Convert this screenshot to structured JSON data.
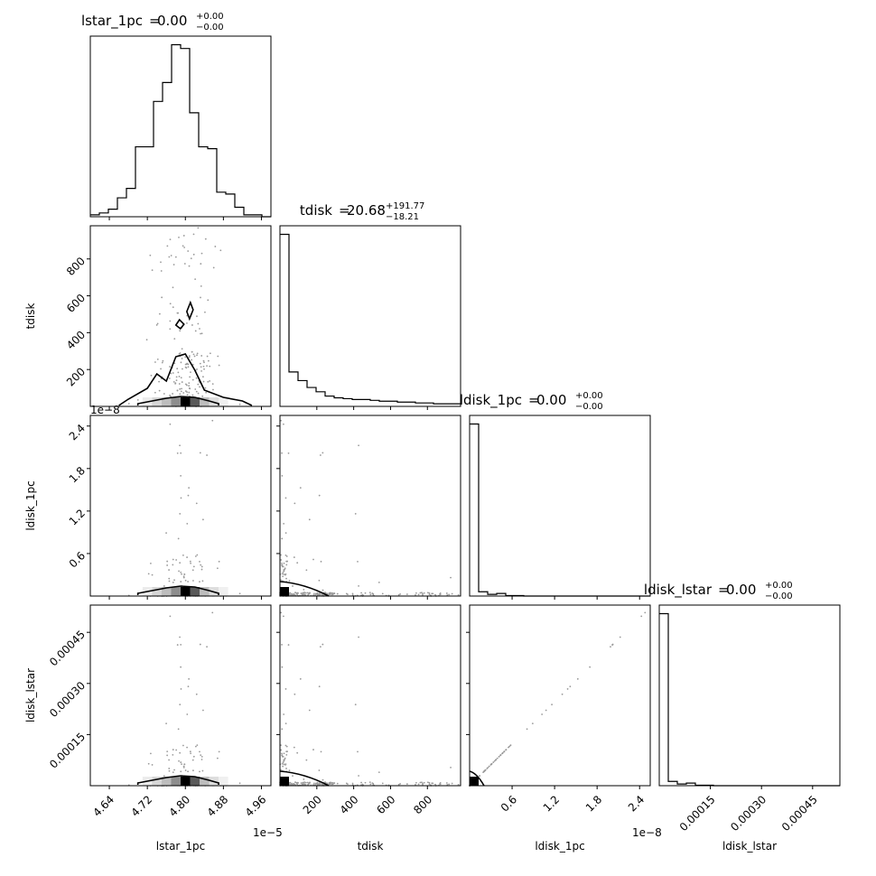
{
  "chart_data": {
    "type": "corner",
    "parameters": [
      "lstar_1pc",
      "tdisk",
      "ldisk_1pc",
      "ldisk_lstar"
    ],
    "titles": [
      {
        "param": "lstar_1pc",
        "median": "0.00",
        "plus": "+0.00",
        "minus": "−0.00"
      },
      {
        "param": "tdisk",
        "median": "20.68",
        "plus": "+191.77",
        "minus": "−18.21"
      },
      {
        "param": "ldisk_1pc",
        "median": "0.00",
        "plus": "+0.00",
        "minus": "−0.00"
      },
      {
        "param": "ldisk_lstar",
        "median": "0.00",
        "plus": "+0.00",
        "minus": "−0.00"
      }
    ],
    "axes": {
      "lstar_1pc": {
        "range": [
          4.6,
          4.98
        ],
        "ticks": [
          4.64,
          4.72,
          4.8,
          4.88,
          4.96
        ],
        "ticklabels": [
          "4.64",
          "4.72",
          "4.80",
          "4.88",
          "4.96"
        ],
        "offset": "1e−5"
      },
      "tdisk": {
        "range": [
          0,
          980
        ],
        "ticks": [
          200,
          400,
          600,
          800
        ],
        "ticklabels": [
          "200",
          "400",
          "600",
          "800"
        ],
        "offset": ""
      },
      "ldisk_1pc": {
        "range": [
          0,
          2.55
        ],
        "ticks": [
          0.6,
          1.2,
          1.8,
          2.4
        ],
        "ticklabels": [
          "0.6",
          "1.2",
          "1.8",
          "2.4"
        ],
        "offset": "1e−8"
      },
      "ldisk_lstar": {
        "range": [
          0,
          0.00053
        ],
        "ticks": [
          0.00015,
          0.0003,
          0.00045
        ],
        "ticklabels": [
          "0.00015",
          "0.00030",
          "0.00045"
        ],
        "offset": ""
      }
    },
    "histograms": {
      "lstar_1pc": {
        "edges": [
          4.6,
          4.619,
          4.638,
          4.657,
          4.676,
          4.695,
          4.714,
          4.733,
          4.752,
          4.771,
          4.79,
          4.809,
          4.828,
          4.847,
          4.866,
          4.885,
          4.904,
          4.923,
          4.942,
          4.961,
          4.98
        ],
        "counts": [
          1,
          2,
          4,
          10,
          15,
          37,
          37,
          61,
          71,
          91,
          89,
          55,
          37,
          36,
          13,
          12,
          5,
          1,
          1,
          0
        ]
      },
      "tdisk": {
        "edges": [
          0,
          49,
          98,
          147,
          196,
          245,
          294,
          343,
          392,
          441,
          490,
          539,
          588,
          637,
          686,
          735,
          784,
          833,
          882,
          931,
          980
        ],
        "counts": [
          200,
          40,
          30,
          22,
          17,
          12,
          10,
          9,
          8,
          8,
          7,
          6,
          6,
          5,
          5,
          4,
          4,
          3,
          3,
          3
        ]
      },
      "ldisk_1pc": {
        "edges": [
          0,
          0.1275,
          0.255,
          0.3825,
          0.51,
          0.6375,
          0.765,
          0.8925,
          1.02,
          1.1475,
          1.275,
          1.4025,
          1.53,
          1.6575,
          1.785,
          1.9125,
          2.04,
          2.1675,
          2.295,
          2.4225,
          2.55
        ],
        "counts": [
          400,
          10,
          4,
          6,
          1,
          1,
          0,
          0,
          0,
          0,
          0,
          0,
          0,
          0,
          0,
          0,
          0,
          0,
          0,
          0
        ]
      },
      "ldisk_lstar": {
        "edges": [
          0,
          2.65e-05,
          5.3e-05,
          7.95e-05,
          0.000106,
          0.0001325,
          0.000159,
          0.0001855,
          0.000212,
          0.0002385,
          0.000265,
          0.0002915,
          0.000318,
          0.0003445,
          0.000371,
          0.0003975,
          0.000424,
          0.0004505,
          0.000477,
          0.0005035,
          0.00053
        ],
        "counts": [
          400,
          10,
          4,
          6,
          1,
          1,
          0,
          0,
          0,
          0,
          0,
          0,
          0,
          0,
          0,
          0,
          0,
          0,
          0,
          0
        ]
      }
    },
    "grid": false,
    "legend": "none"
  }
}
